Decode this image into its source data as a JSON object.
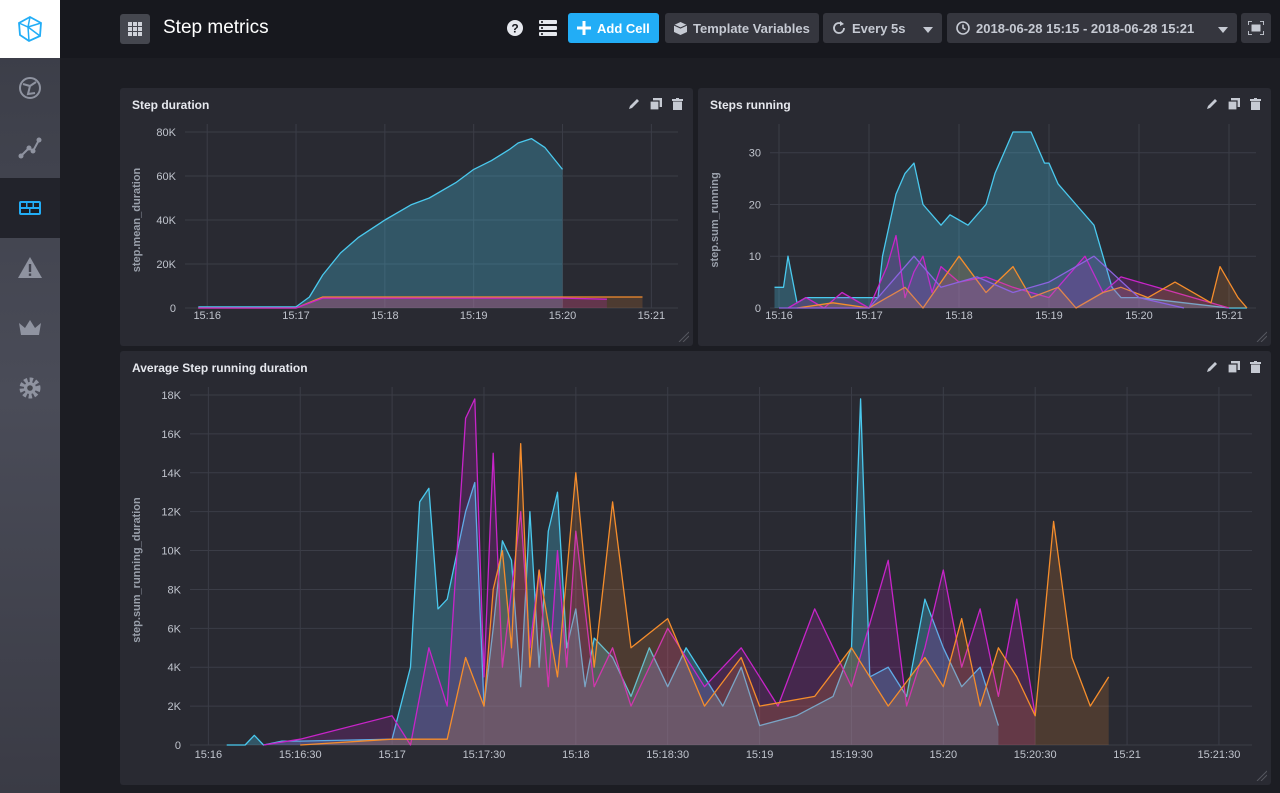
{
  "page": {
    "title": "Step metrics"
  },
  "topbar": {
    "add_cell": "Add Cell",
    "template_variables": "Template Variables",
    "refresh": "Every 5s",
    "time_range": "2018-06-28 15:15 - 2018-06-28 15:21"
  },
  "colors": {
    "cyan": "#4ac9ee",
    "orange": "#f58d2c",
    "magenta": "#c824c9",
    "purple": "#8c63e0",
    "accent": "#22adf6"
  },
  "cells": [
    {
      "title": "Step duration",
      "chart_data": {
        "type": "area",
        "ylabel": "step.mean_duration",
        "x_ticks": [
          "15:16",
          "15:17",
          "15:18",
          "15:19",
          "15:20",
          "15:21"
        ],
        "y_ticks": [
          "0",
          "20K",
          "40K",
          "60K",
          "80K"
        ],
        "ylim": [
          0,
          80000
        ],
        "xlim_minutes": [
          15.75,
          21.3
        ],
        "series": [
          {
            "color": "#4ac9ee",
            "x": [
              15.9,
              16.5,
              17.0,
              17.15,
              17.3,
              17.5,
              17.7,
              18.0,
              18.3,
              18.5,
              18.8,
              19.0,
              19.2,
              19.4,
              19.5,
              19.65,
              19.8,
              20.0
            ],
            "values": [
              500,
              500,
              500,
              5000,
              15000,
              25000,
              32000,
              40000,
              47000,
              50000,
              57000,
              63000,
              67000,
              72000,
              75000,
              77000,
              73000,
              63000
            ]
          },
          {
            "color": "#f58d2c",
            "x": [
              15.9,
              17.0,
              17.3,
              18.0,
              19.0,
              20.0,
              20.9
            ],
            "values": [
              0,
              0,
              5000,
              5000,
              5000,
              5000,
              5000
            ]
          },
          {
            "color": "#c824c9",
            "x": [
              15.9,
              17.0,
              17.3,
              18.0,
              19.0,
              20.0,
              20.5
            ],
            "values": [
              0,
              0,
              4500,
              4500,
              4500,
              4500,
              4000
            ]
          }
        ]
      }
    },
    {
      "title": "Steps running",
      "chart_data": {
        "type": "line",
        "ylabel": "step.sum_running",
        "x_ticks": [
          "15:16",
          "15:17",
          "15:18",
          "15:19",
          "15:20",
          "15:21"
        ],
        "y_ticks": [
          "0",
          "10",
          "20",
          "30"
        ],
        "ylim": [
          0,
          34
        ],
        "xlim_minutes": [
          15.9,
          21.3
        ],
        "series": [
          {
            "color": "#4ac9ee",
            "x": [
              15.95,
              16.05,
              16.1,
              16.2,
              16.3,
              17.1,
              17.15,
              17.3,
              17.4,
              17.5,
              17.6,
              17.8,
              17.9,
              18.0,
              18.1,
              18.3,
              18.4,
              18.5,
              18.6,
              18.7,
              18.8,
              18.9,
              18.95,
              19.0,
              19.1,
              19.3,
              19.5,
              19.6,
              19.7,
              19.8,
              20.0,
              20.5,
              21.0,
              21.2
            ],
            "values": [
              4,
              4,
              10,
              1,
              2,
              2,
              10,
              22,
              26,
              28,
              20,
              16,
              18,
              17,
              16,
              20,
              26,
              30,
              34,
              34,
              34,
              30,
              28,
              28,
              24,
              20,
              16,
              10,
              4,
              2,
              2,
              1,
              0,
              0
            ]
          },
          {
            "color": "#c824c9",
            "x": [
              16.1,
              16.3,
              16.5,
              16.7,
              17.0,
              17.2,
              17.3,
              17.4,
              17.5,
              17.6,
              17.7,
              17.8,
              18.0,
              18.3,
              18.6,
              19.0,
              19.4,
              19.6,
              19.8,
              20.2,
              20.6,
              21.0
            ],
            "values": [
              0,
              2,
              0,
              3,
              0,
              8,
              14,
              2,
              7,
              10,
              3,
              8,
              5,
              6,
              4,
              2,
              10,
              3,
              6,
              4,
              2,
              0
            ]
          },
          {
            "color": "#f58d2c",
            "x": [
              16.2,
              16.6,
              17.0,
              17.2,
              17.4,
              17.6,
              18.0,
              18.3,
              18.6,
              18.8,
              19.1,
              19.3,
              19.6,
              19.8,
              20.1,
              20.4,
              20.8,
              20.9,
              21.1,
              21.2
            ],
            "values": [
              0,
              1,
              0,
              2,
              4,
              0,
              10,
              3,
              8,
              2,
              4,
              0,
              3,
              4,
              2,
              5,
              1,
              8,
              2,
              0
            ]
          },
          {
            "color": "#8c63e0",
            "x": [
              16.0,
              16.5,
              17.0,
              17.3,
              17.5,
              17.8,
              18.2,
              18.6,
              19.0,
              19.5,
              20.0,
              20.5
            ],
            "values": [
              0,
              0,
              0,
              6,
              10,
              4,
              6,
              3,
              5,
              10,
              2,
              0
            ]
          }
        ]
      }
    },
    {
      "title": "Average Step running duration",
      "chart_data": {
        "type": "line",
        "ylabel": "step.sum_running_duration",
        "x_ticks": [
          "15:16",
          "15:16:30",
          "15:17",
          "15:17:30",
          "15:18",
          "15:18:30",
          "15:19",
          "15:19:30",
          "15:20",
          "15:20:30",
          "15:21",
          "15:21:30"
        ],
        "y_ticks": [
          "0",
          "2K",
          "4K",
          "6K",
          "8K",
          "10K",
          "12K",
          "14K",
          "16K",
          "18K"
        ],
        "ylim": [
          0,
          18000
        ],
        "xlim_minutes": [
          15.9,
          21.68
        ],
        "series": [
          {
            "color": "#4ac9ee",
            "x": [
              16.1,
              16.2,
              16.25,
              16.3,
              16.4,
              16.5,
              17.0,
              17.1,
              17.15,
              17.2,
              17.25,
              17.3,
              17.4,
              17.45,
              17.5,
              17.55,
              17.6,
              17.65,
              17.7,
              17.75,
              17.8,
              17.85,
              17.9,
              17.95,
              18.0,
              18.05,
              18.1,
              18.2,
              18.3,
              18.4,
              18.5,
              18.6,
              18.7,
              18.8,
              18.9,
              19.0,
              19.2,
              19.4,
              19.5,
              19.55,
              19.6,
              19.7,
              19.8,
              19.9,
              20.0,
              20.1,
              20.2,
              20.3
            ],
            "values": [
              0,
              0,
              500,
              0,
              200,
              200,
              300,
              4000,
              12500,
              13200,
              7000,
              7500,
              12000,
              13500,
              2000,
              6000,
              10500,
              9500,
              3000,
              12000,
              4000,
              11000,
              13000,
              5000,
              7000,
              3000,
              5500,
              4500,
              2500,
              5000,
              3000,
              5000,
              3500,
              2000,
              4000,
              1000,
              1500,
              2500,
              5000,
              17800,
              3500,
              4000,
              2500,
              7500,
              5000,
              3000,
              4000,
              1000
            ]
          },
          {
            "color": "#c824c9",
            "x": [
              16.3,
              16.5,
              17.0,
              17.1,
              17.2,
              17.3,
              17.4,
              17.45,
              17.5,
              17.55,
              17.6,
              17.7,
              17.75,
              17.8,
              17.85,
              17.9,
              17.95,
              18.0,
              18.1,
              18.2,
              18.3,
              18.5,
              18.7,
              18.9,
              19.1,
              19.3,
              19.5,
              19.7,
              19.8,
              19.9,
              20.0,
              20.1,
              20.2,
              20.3,
              20.4,
              20.5
            ],
            "values": [
              0,
              300,
              1500,
              0,
              5000,
              2000,
              16800,
              17800,
              3500,
              15000,
              4000,
              12000,
              5000,
              9000,
              3000,
              10000,
              4000,
              11000,
              3000,
              5000,
              2000,
              6000,
              3000,
              5000,
              2000,
              7000,
              3000,
              9500,
              2000,
              5000,
              9000,
              4000,
              7000,
              2500,
              7500,
              1500
            ]
          },
          {
            "color": "#f58d2c",
            "x": [
              16.5,
              17.0,
              17.3,
              17.4,
              17.5,
              17.55,
              17.6,
              17.65,
              17.7,
              17.75,
              17.8,
              17.9,
              18.0,
              18.1,
              18.2,
              18.3,
              18.5,
              18.7,
              18.9,
              19.0,
              19.3,
              19.5,
              19.7,
              19.9,
              20.0,
              20.1,
              20.2,
              20.3,
              20.4,
              20.5,
              20.6,
              20.7,
              20.8,
              20.9
            ],
            "values": [
              0,
              300,
              300,
              4500,
              2000,
              8000,
              10000,
              5000,
              15500,
              4000,
              9000,
              3500,
              14000,
              4000,
              12500,
              5000,
              6500,
              2000,
              4500,
              2000,
              2500,
              5000,
              2000,
              4500,
              3000,
              6500,
              2000,
              5000,
              3500,
              1500,
              11500,
              4500,
              2000,
              3500
            ]
          }
        ]
      }
    }
  ]
}
